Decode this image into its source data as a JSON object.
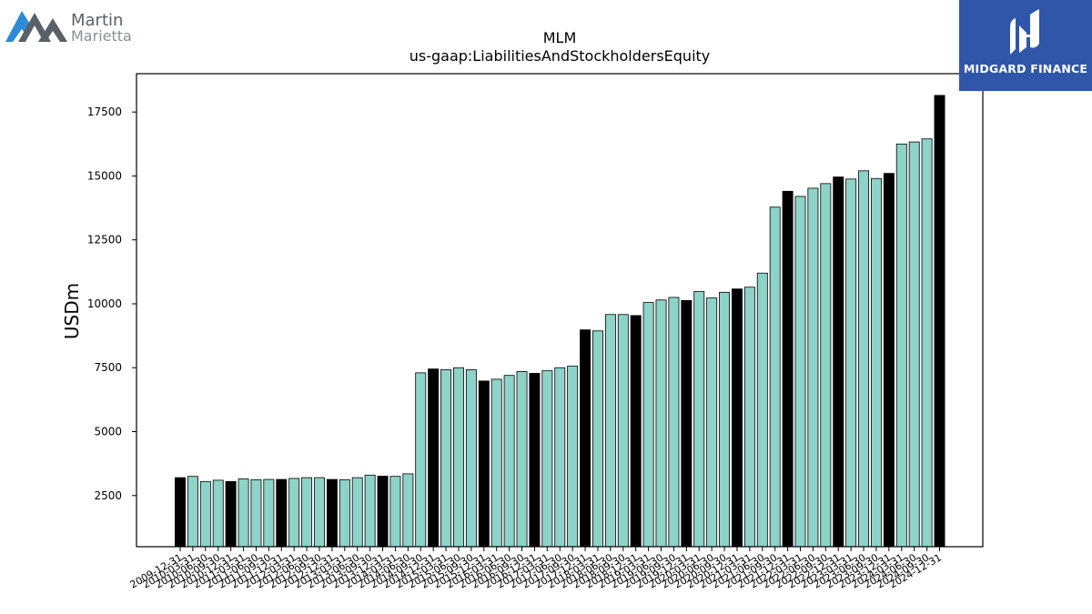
{
  "logos": {
    "left_line1": "Martin",
    "left_line2": "Marietta",
    "right": "MIDGARD FINANCE"
  },
  "chart_data": {
    "type": "bar",
    "title": "MLM",
    "subtitle": "us-gaap:LiabilitiesAndStockholdersEquity",
    "xlabel": "",
    "ylabel": "USDm",
    "ylim": [
      500,
      19000
    ],
    "yticks": [
      2500,
      5000,
      7500,
      10000,
      12500,
      15000,
      17500
    ],
    "grid": false,
    "legend": "none",
    "colors": {
      "annual": "#000000",
      "quarter": "#8dd3c7",
      "edge": "#000000"
    },
    "categories": [
      "2009-12-31",
      "2010-03-31",
      "2010-06-30",
      "2010-09-30",
      "2010-12-31",
      "2011-03-31",
      "2011-06-30",
      "2011-09-30",
      "2011-12-31",
      "2012-03-31",
      "2012-06-30",
      "2012-09-30",
      "2012-12-31",
      "2013-03-31",
      "2013-06-30",
      "2013-09-30",
      "2013-12-31",
      "2014-03-31",
      "2014-06-30",
      "2014-09-30",
      "2014-12-31",
      "2015-03-31",
      "2015-06-30",
      "2015-09-30",
      "2015-12-31",
      "2016-03-31",
      "2016-06-30",
      "2016-09-30",
      "2016-12-31",
      "2017-03-31",
      "2017-06-30",
      "2017-09-30",
      "2017-12-31",
      "2018-03-31",
      "2018-06-30",
      "2018-09-30",
      "2018-12-31",
      "2019-03-31",
      "2019-06-30",
      "2019-09-30",
      "2019-12-31",
      "2020-03-31",
      "2020-06-30",
      "2020-09-30",
      "2020-12-31",
      "2021-03-31",
      "2021-06-30",
      "2021-09-30",
      "2021-12-31",
      "2022-03-31",
      "2022-06-30",
      "2022-09-30",
      "2022-12-31",
      "2023-03-31",
      "2023-06-30",
      "2023-09-30",
      "2023-12-31",
      "2024-03-31",
      "2024-06-30",
      "2024-09-30",
      "2024-12-31"
    ],
    "values": [
      3200,
      3250,
      3050,
      3100,
      3050,
      3150,
      3120,
      3130,
      3130,
      3170,
      3200,
      3200,
      3130,
      3120,
      3200,
      3300,
      3260,
      3250,
      3350,
      7300,
      7450,
      7420,
      7500,
      7420,
      6980,
      7050,
      7200,
      7350,
      7280,
      7380,
      7500,
      7560,
      8980,
      8940,
      9580,
      9580,
      9540,
      10050,
      10150,
      10250,
      10130,
      10480,
      10230,
      10450,
      10580,
      10650,
      11200,
      13780,
      14400,
      14200,
      14520,
      14700,
      14960,
      14880,
      15200,
      14900,
      15100,
      16250,
      16330,
      16450,
      18150
    ]
  }
}
